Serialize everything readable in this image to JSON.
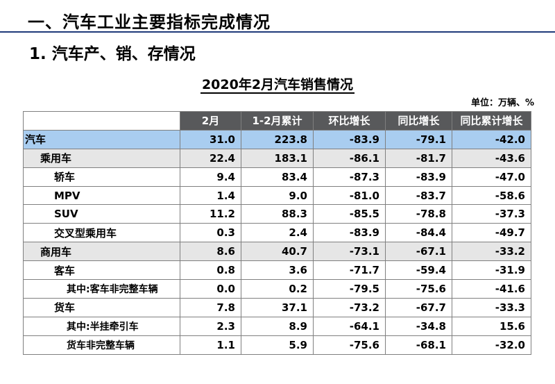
{
  "header": {
    "slide_title": "一、汽车工业主要指标完成情况",
    "section_title": "1. 汽车产、销、存情况",
    "table_title": "2020年2月汽车销售情况",
    "unit": "单位：万辆、%"
  },
  "table": {
    "columns": [
      "2月",
      "1-2月累计",
      "环比增长",
      "同比增长",
      "同比累计增长"
    ],
    "rows": [
      {
        "name": "汽车",
        "values": [
          "31.0",
          "223.8",
          "-83.9",
          "-79.1",
          "-42.0"
        ]
      },
      {
        "name": "乘用车",
        "values": [
          "22.4",
          "183.1",
          "-86.1",
          "-81.7",
          "-43.6"
        ]
      },
      {
        "name": "轿车",
        "values": [
          "9.4",
          "83.4",
          "-87.3",
          "-83.9",
          "-47.0"
        ]
      },
      {
        "name": "MPV",
        "values": [
          "1.4",
          "9.0",
          "-81.0",
          "-83.7",
          "-58.6"
        ]
      },
      {
        "name": "SUV",
        "values": [
          "11.2",
          "88.3",
          "-85.5",
          "-78.8",
          "-37.3"
        ]
      },
      {
        "name": "交叉型乘用车",
        "values": [
          "0.3",
          "2.4",
          "-83.9",
          "-84.4",
          "-49.7"
        ]
      },
      {
        "name": "商用车",
        "values": [
          "8.6",
          "40.7",
          "-73.1",
          "-67.1",
          "-33.2"
        ]
      },
      {
        "name": "客车",
        "values": [
          "0.8",
          "3.6",
          "-71.7",
          "-59.4",
          "-31.9"
        ]
      },
      {
        "name": "其中:客车非完整车辆",
        "values": [
          "0.0",
          "0.2",
          "-79.5",
          "-75.6",
          "-41.6"
        ]
      },
      {
        "name": "货车",
        "values": [
          "7.8",
          "37.1",
          "-73.2",
          "-67.7",
          "-33.3"
        ]
      },
      {
        "name": "其中:半挂牵引车",
        "values": [
          "2.3",
          "8.9",
          "-64.1",
          "-34.8",
          "15.6"
        ]
      },
      {
        "name": "货车非完整车辆",
        "values": [
          "1.1",
          "5.9",
          "-75.6",
          "-68.1",
          "-32.0"
        ]
      }
    ]
  },
  "colors": {
    "header_bg": "#58595b",
    "total_row_bg": "#a9cdf0",
    "subtotal_row_bg": "#e6e6e6",
    "title_rule": "#1f3a7a"
  }
}
